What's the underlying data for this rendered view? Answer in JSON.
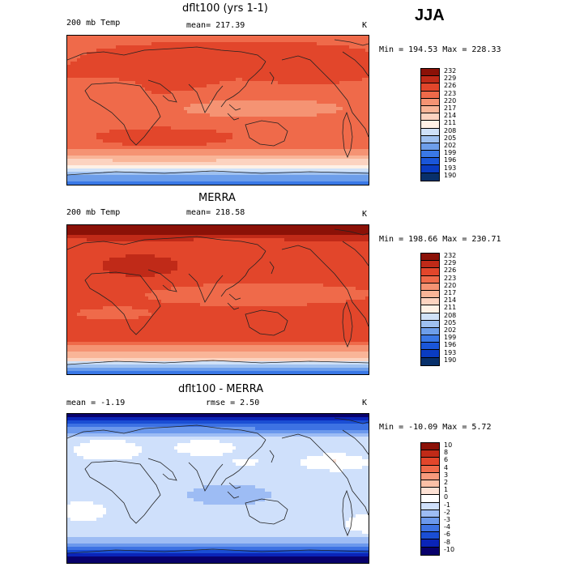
{
  "season": "JJA",
  "palette_temp": [
    "#08306b",
    "#0a3cc2",
    "#1a56d9",
    "#3a78e6",
    "#6d9eea",
    "#9fc1f0",
    "#cfe1f8",
    "#fff1e6",
    "#fcd3c0",
    "#f9b598",
    "#f59373",
    "#ef6a4a",
    "#e2462b",
    "#c02a18",
    "#8b1107"
  ],
  "palette_diff": [
    "#08006b",
    "#0a24b8",
    "#1a4ed4",
    "#3d72e3",
    "#6b98ec",
    "#9dbcf4",
    "#cfe0fb",
    "#ffffff",
    "#fde1d4",
    "#fbc0a6",
    "#f79a7c",
    "#ef6a4a",
    "#e2462b",
    "#c02a18",
    "#8b1107"
  ],
  "panels": [
    {
      "title": "dflt100 (yrs 1-1)",
      "left_label": "200 mb Temp",
      "center_label": "mean= 217.39",
      "unit": "K",
      "minmax": "Min = 194.53 Max = 228.33",
      "colorbar_labels": [
        "232",
        "229",
        "226",
        "223",
        "220",
        "217",
        "214",
        "211",
        "208",
        "205",
        "202",
        "199",
        "196",
        "193",
        "190"
      ],
      "colorbar_type": "temp"
    },
    {
      "title": "MERRA",
      "left_label": "200 mb Temp",
      "center_label": "mean= 218.58",
      "unit": "K",
      "minmax": "Min = 198.66 Max = 230.71",
      "colorbar_labels": [
        "232",
        "229",
        "226",
        "223",
        "220",
        "217",
        "214",
        "211",
        "208",
        "205",
        "202",
        "199",
        "196",
        "193",
        "190"
      ],
      "colorbar_type": "temp"
    },
    {
      "title": "dflt100 - MERRA",
      "left_label": "mean =   -1.19",
      "center_label": "rmse =    2.50",
      "unit": "K",
      "minmax": "Min = -10.09 Max =   5.72",
      "colorbar_labels": [
        "10",
        "8",
        "6",
        "4",
        "3",
        "2",
        "1",
        "0",
        "-1",
        "-2",
        "-3",
        "-4",
        "-6",
        "-8",
        "-10"
      ],
      "colorbar_type": "diff"
    }
  ],
  "chart_data": [
    {
      "type": "heatmap",
      "title": "dflt100 (yrs 1-1)",
      "variable": "200 mb Temp",
      "units": "K",
      "mean": 217.39,
      "min": 194.53,
      "max": 228.33,
      "levels": [
        190,
        193,
        196,
        199,
        202,
        205,
        208,
        211,
        214,
        217,
        220,
        223,
        226,
        229,
        232
      ]
    },
    {
      "type": "heatmap",
      "title": "MERRA",
      "variable": "200 mb Temp",
      "units": "K",
      "mean": 218.58,
      "min": 198.66,
      "max": 230.71,
      "levels": [
        190,
        193,
        196,
        199,
        202,
        205,
        208,
        211,
        214,
        217,
        220,
        223,
        226,
        229,
        232
      ]
    },
    {
      "type": "heatmap",
      "title": "dflt100 - MERRA",
      "units": "K",
      "mean": -1.19,
      "rmse": 2.5,
      "min": -10.09,
      "max": 5.72,
      "levels": [
        -10,
        -8,
        -6,
        -4,
        -3,
        -2,
        -1,
        0,
        1,
        2,
        3,
        4,
        6,
        8,
        10
      ]
    }
  ]
}
